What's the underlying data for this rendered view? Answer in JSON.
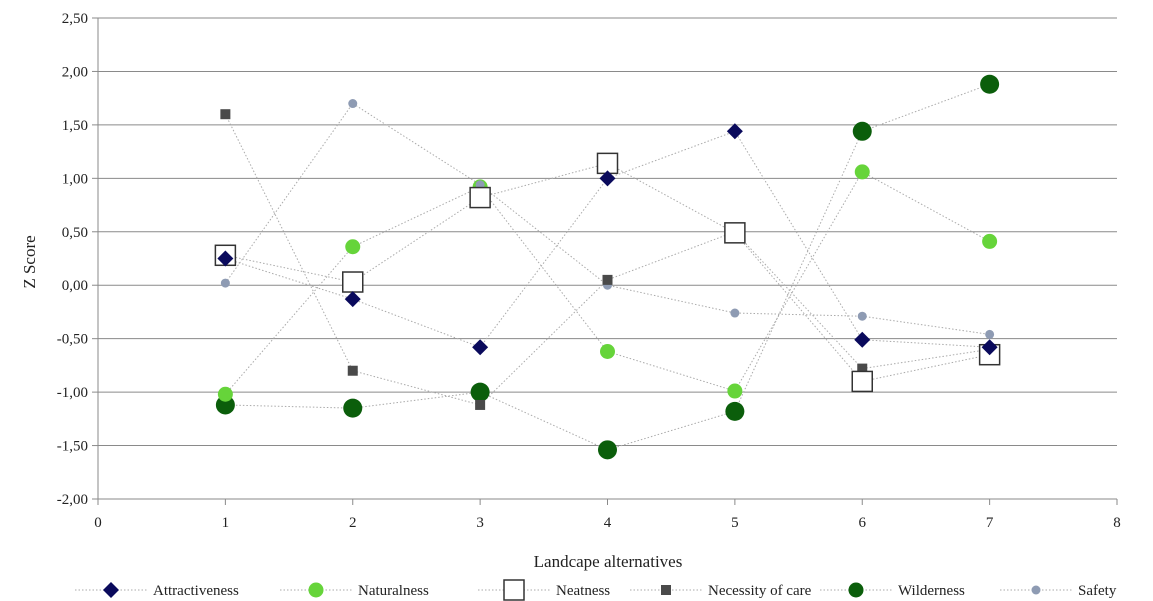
{
  "chart_data": {
    "type": "scatter",
    "title": "",
    "xlabel": "Landcape alternatives",
    "ylabel": "Z Score",
    "xlim": [
      0,
      8
    ],
    "ylim": [
      -2.0,
      2.5
    ],
    "x_ticks": [
      "0",
      "1",
      "2",
      "3",
      "4",
      "5",
      "6",
      "7",
      "8"
    ],
    "y_ticks": [
      "2,50",
      "2,00",
      "1,50",
      "1,00",
      "0,50",
      "0,00",
      "-0,50",
      "-1,00",
      "-1,50",
      "-2,00"
    ],
    "grid": "horizontal",
    "legend_position": "bottom",
    "x": [
      1,
      2,
      3,
      4,
      5,
      6,
      7
    ],
    "series": [
      {
        "name": "Attractiveness",
        "marker": "diamond",
        "color": "#0a0a5c",
        "values": [
          0.25,
          -0.13,
          -0.58,
          1.0,
          1.44,
          -0.51,
          -0.58
        ]
      },
      {
        "name": "Naturalness",
        "marker": "circle",
        "color": "#66d43a",
        "values": [
          -1.02,
          0.36,
          0.92,
          -0.62,
          -0.99,
          1.06,
          0.41
        ]
      },
      {
        "name": "Neatness",
        "marker": "square-open",
        "color": "#333333",
        "values": [
          0.28,
          0.03,
          0.82,
          1.14,
          0.49,
          -0.9,
          -0.65
        ]
      },
      {
        "name": "Necessity of care",
        "marker": "square",
        "color": "#4a4a4a",
        "values": [
          1.6,
          -0.8,
          -1.12,
          0.05,
          0.5,
          -0.78,
          -0.6
        ]
      },
      {
        "name": "Wilderness",
        "marker": "circle-large",
        "color": "#0b5e0b",
        "values": [
          -1.12,
          -1.15,
          -1.0,
          -1.54,
          -1.18,
          1.44,
          1.88
        ]
      },
      {
        "name": "Safety",
        "marker": "circle-small",
        "color": "#8e9bb3",
        "values": [
          0.02,
          1.7,
          0.94,
          0.0,
          -0.26,
          -0.29,
          -0.46
        ]
      }
    ]
  }
}
